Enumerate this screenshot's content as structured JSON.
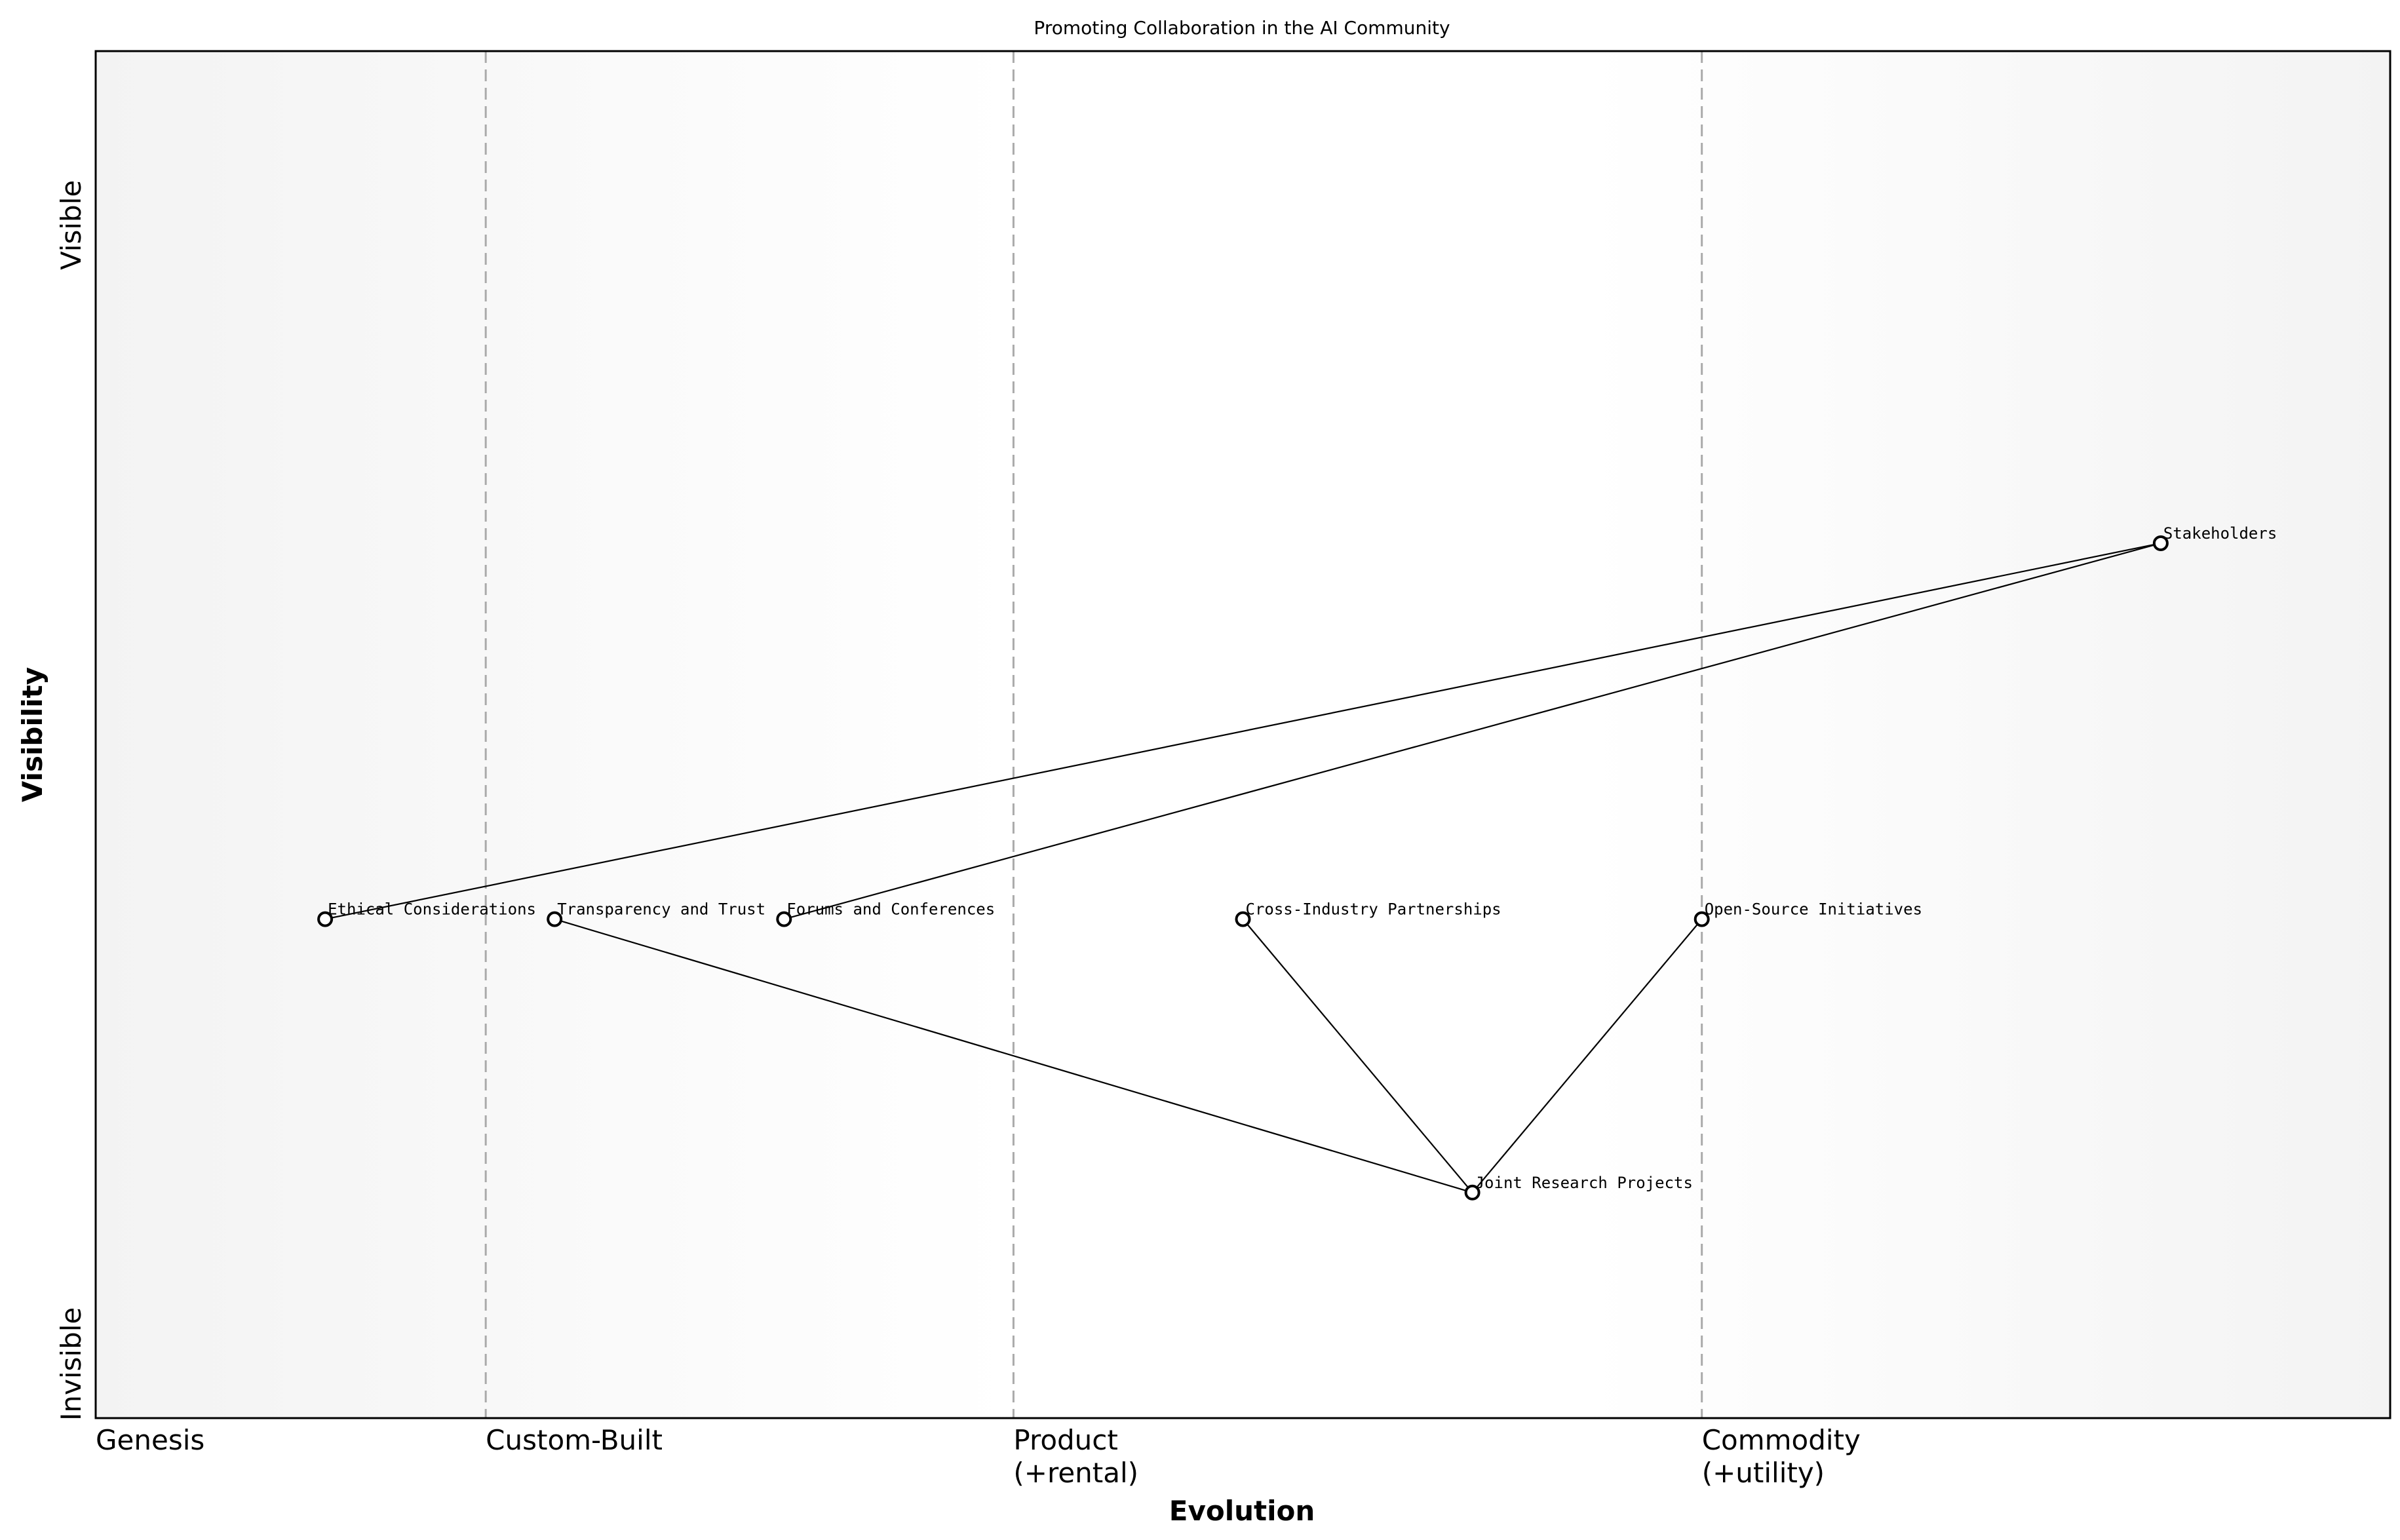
{
  "title": "Promoting Collaboration in the AI Community",
  "x_axis": {
    "label": "Evolution",
    "stages": [
      {
        "lines": [
          "Genesis"
        ],
        "start": 0.0
      },
      {
        "lines": [
          "Custom-Built"
        ],
        "start": 0.17
      },
      {
        "lines": [
          "Product",
          "(+rental)"
        ],
        "start": 0.4
      },
      {
        "lines": [
          "Commodity",
          "(+utility)"
        ],
        "start": 0.7
      }
    ]
  },
  "y_axis": {
    "label": "Visibility",
    "top_label": "Visible",
    "bottom_label": "Invisible"
  },
  "nodes": [
    {
      "id": "stakeholders",
      "label": "Stakeholders",
      "evolution": 0.9,
      "visibility": 0.64
    },
    {
      "id": "ethical",
      "label": "Ethical Considerations",
      "evolution": 0.1,
      "visibility": 0.365
    },
    {
      "id": "transparency",
      "label": "Transparency and Trust",
      "evolution": 0.2,
      "visibility": 0.365
    },
    {
      "id": "forums",
      "label": "Forums and Conferences",
      "evolution": 0.3,
      "visibility": 0.365
    },
    {
      "id": "cross",
      "label": "Cross-Industry Partnerships",
      "evolution": 0.5,
      "visibility": 0.365
    },
    {
      "id": "opensource",
      "label": "Open-Source Initiatives",
      "evolution": 0.7,
      "visibility": 0.365
    },
    {
      "id": "joint",
      "label": "Joint Research Projects",
      "evolution": 0.6,
      "visibility": 0.165
    }
  ],
  "links": [
    [
      "stakeholders",
      "ethical"
    ],
    [
      "stakeholders",
      "forums"
    ],
    [
      "transparency",
      "joint"
    ],
    [
      "cross",
      "joint"
    ],
    [
      "opensource",
      "joint"
    ]
  ]
}
